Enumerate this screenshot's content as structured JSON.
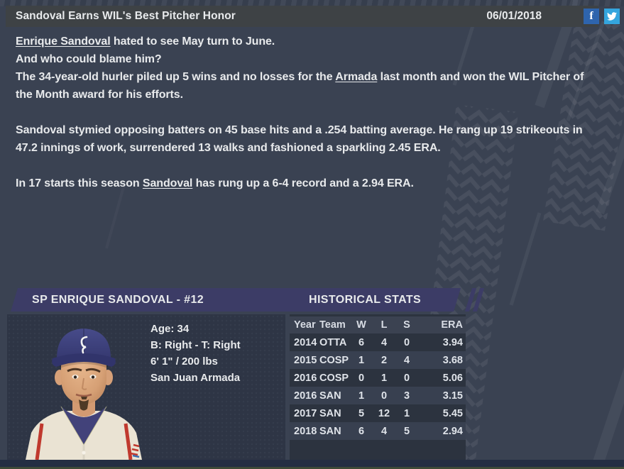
{
  "header": {
    "title": "Sandoval Earns WIL's Best Pitcher Honor",
    "date": "06/01/2018",
    "facebook_label": "f"
  },
  "article": {
    "paragraphs": [
      [
        {
          "t": "Enrique Sandoval",
          "link": true
        },
        {
          "t": " hated to see May turn to June.\nAnd who could blame him?\nThe 34-year-old hurler piled up 5 wins and no losses for the ",
          "link": false
        },
        {
          "t": "Armada",
          "link": true
        },
        {
          "t": " last month and won the WIL Pitcher of\nthe Month award for his efforts.",
          "link": false
        }
      ],
      [
        {
          "t": "Sandoval stymied opposing batters on 45 base hits and a .254 batting average. He rang up 19 strikeouts in\n47.2 innings of work, surrendered 13 walks and fashioned a sparkling 2.45 ERA.",
          "link": false
        }
      ],
      [
        {
          "t": "In 17 starts this season ",
          "link": false
        },
        {
          "t": "Sandoval",
          "link": true
        },
        {
          "t": " has rung up a 6-4 record and a 2.94 ERA.",
          "link": false
        }
      ]
    ]
  },
  "player_card": {
    "banner": "SP ENRIQUE SANDOVAL - #12",
    "info_lines": [
      "Age: 34",
      "B: Right - T: Right",
      "6' 1\" / 200 lbs",
      "San Juan Armada"
    ]
  },
  "stats": {
    "banner": "HISTORICAL STATS",
    "columns": [
      "Year",
      "Team",
      "W",
      "L",
      "S",
      "ERA"
    ],
    "rows": [
      [
        "2014",
        "OTTA",
        "6",
        "4",
        "0",
        "3.94"
      ],
      [
        "2015",
        "COSP",
        "1",
        "2",
        "4",
        "3.68"
      ],
      [
        "2016",
        "COSP",
        "0",
        "1",
        "0",
        "5.06"
      ],
      [
        "2016",
        "SAN",
        "1",
        "0",
        "3",
        "3.15"
      ],
      [
        "2017",
        "SAN",
        "5",
        "12",
        "1",
        "5.45"
      ],
      [
        "2018",
        "SAN",
        "6",
        "4",
        "5",
        "2.94"
      ]
    ]
  },
  "colors": {
    "background": "#3a4252",
    "panel": "#2e3545",
    "banner": "#3c3c66",
    "header_bar": "#3e4245",
    "facebook": "#2e64ad",
    "twitter": "#34a5de",
    "row_dark": "#2c333f",
    "row_light": "#384050",
    "text": "#e8eaec"
  }
}
